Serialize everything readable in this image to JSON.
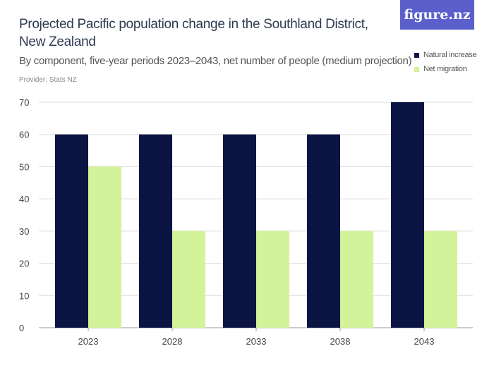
{
  "header": {
    "title": "Projected Pacific population change in the Southland District, New Zealand",
    "subtitle": "By component, five-year periods 2023–2043, net number of people (medium projection)",
    "provider": "Provider: Stats NZ",
    "logo": "figure.nz",
    "logo_color": "#5a5fcc"
  },
  "chart_data": {
    "type": "bar",
    "categories": [
      "2023",
      "2028",
      "2033",
      "2038",
      "2043"
    ],
    "series": [
      {
        "name": "Natural increase",
        "color": "#0b1442",
        "values": [
          60,
          60,
          60,
          60,
          70
        ]
      },
      {
        "name": "Net migration",
        "color": "#d4f29a",
        "values": [
          50,
          30,
          30,
          30,
          30
        ]
      }
    ],
    "ylim": [
      0,
      70
    ],
    "yticks": [
      "0",
      "10",
      "20",
      "30",
      "40",
      "50",
      "60",
      "70"
    ],
    "grid": true,
    "legend": "top-right"
  }
}
